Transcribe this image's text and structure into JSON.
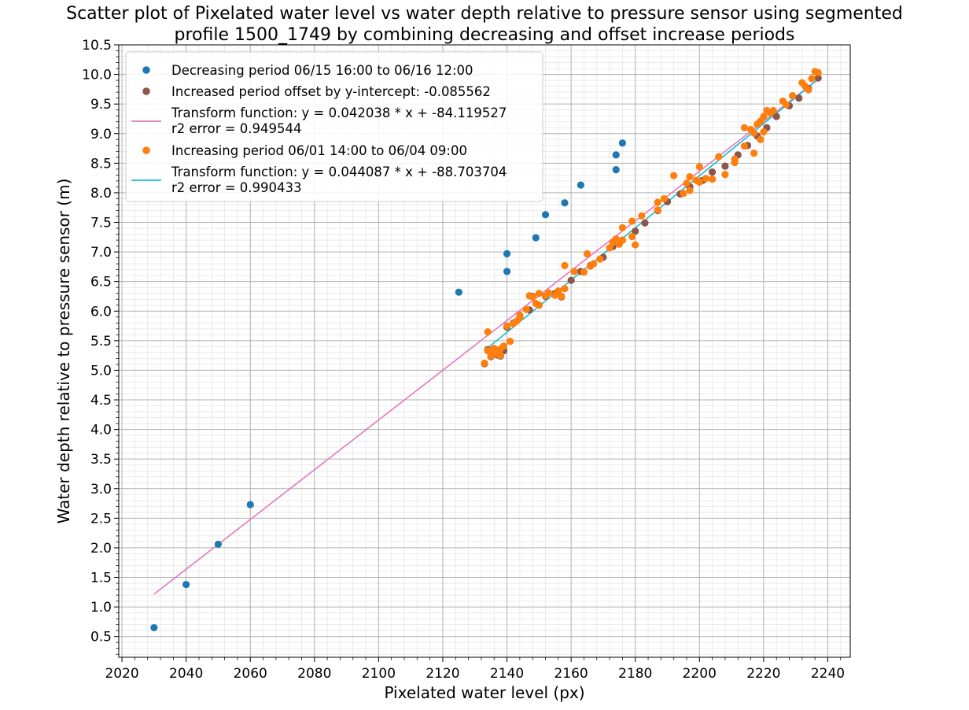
{
  "chart_data": {
    "type": "scatter",
    "title_lines": [
      "Scatter plot of Pixelated water level vs water depth relative to pressure sensor using segmented",
      "profile 1500_1749 by combining decreasing and offset increase periods"
    ],
    "xlabel": "Pixelated water level (px)",
    "ylabel": "Water depth relative to pressure sensor (m)",
    "xlim": [
      2019,
      2247
    ],
    "ylim": [
      0.15,
      10.5
    ],
    "x_ticks": [
      2020,
      2040,
      2060,
      2080,
      2100,
      2120,
      2140,
      2160,
      2180,
      2200,
      2220,
      2240
    ],
    "y_ticks": [
      0.5,
      1.0,
      1.5,
      2.0,
      2.5,
      3.0,
      3.5,
      4.0,
      4.5,
      5.0,
      5.5,
      6.0,
      6.5,
      7.0,
      7.5,
      8.0,
      8.5,
      9.0,
      9.5,
      10.0,
      10.5
    ],
    "grid": "major and minor",
    "legend_placement": "upper-left",
    "legend": [
      {
        "kind": "marker",
        "color": "#1f77b4",
        "lines": [
          "Decreasing period 06/15 16:00 to 06/16 12:00"
        ]
      },
      {
        "kind": "marker",
        "color": "#8c564b",
        "lines": [
          "Increased period offset by y-intercept: -0.085562"
        ]
      },
      {
        "kind": "line",
        "color": "#e377c2",
        "lines": [
          "Transform function: y = 0.042038 * x + -84.119527",
          "r2 error = 0.949544"
        ]
      },
      {
        "kind": "marker",
        "color": "#ff7f0e",
        "lines": [
          "Increasing period 06/01 14:00 to 06/04 09:00"
        ]
      },
      {
        "kind": "line",
        "color": "#17becf",
        "lines": [
          "Transform function: y = 0.044087 * x + -88.703704",
          "r2 error = 0.990433"
        ]
      }
    ],
    "series": [
      {
        "name": "Decreasing period 06/15 16:00 to 06/16 12:00",
        "kind": "scatter",
        "color": "#1f77b4",
        "points": [
          [
            2030,
            0.65
          ],
          [
            2040,
            1.38
          ],
          [
            2050,
            2.06
          ],
          [
            2060,
            2.73
          ],
          [
            2125,
            6.32
          ],
          [
            2140,
            6.67
          ],
          [
            2140,
            6.97
          ],
          [
            2149,
            7.24
          ],
          [
            2152,
            7.63
          ],
          [
            2158,
            7.83
          ],
          [
            2163,
            8.13
          ],
          [
            2174,
            8.39
          ],
          [
            2174,
            8.64
          ],
          [
            2176,
            8.84
          ]
        ]
      },
      {
        "name": "Increased period offset by y-intercept: -0.085562",
        "kind": "scatter",
        "color": "#8c564b",
        "points": [
          [
            2133,
            5.11
          ],
          [
            2134,
            5.35
          ],
          [
            2135,
            5.23
          ],
          [
            2136,
            5.3
          ],
          [
            2137,
            5.26
          ],
          [
            2138,
            5.24
          ],
          [
            2139,
            5.33
          ],
          [
            2140,
            5.73
          ],
          [
            2142,
            5.8
          ],
          [
            2144,
            5.9
          ],
          [
            2147,
            6.02
          ],
          [
            2148,
            6.25
          ],
          [
            2150,
            6.1
          ],
          [
            2152,
            6.25
          ],
          [
            2155,
            6.3
          ],
          [
            2157,
            6.24
          ],
          [
            2160,
            6.52
          ],
          [
            2163,
            6.67
          ],
          [
            2166,
            6.77
          ],
          [
            2170,
            6.91
          ],
          [
            2173,
            7.09
          ],
          [
            2176,
            7.2
          ],
          [
            2180,
            7.35
          ],
          [
            2183,
            7.49
          ],
          [
            2187,
            7.7
          ],
          [
            2190,
            7.85
          ],
          [
            2194,
            7.98
          ],
          [
            2197,
            8.1
          ],
          [
            2201,
            8.21
          ],
          [
            2204,
            8.35
          ],
          [
            2208,
            8.45
          ],
          [
            2212,
            8.64
          ],
          [
            2215,
            8.8
          ],
          [
            2218,
            8.96
          ],
          [
            2221,
            9.1
          ],
          [
            2224,
            9.29
          ],
          [
            2228,
            9.47
          ],
          [
            2231,
            9.6
          ],
          [
            2234,
            9.76
          ],
          [
            2237,
            9.94
          ]
        ]
      },
      {
        "name": "Increasing period 06/01 14:00 to 06/04 09:00",
        "kind": "scatter",
        "color": "#ff7f0e",
        "points": [
          [
            2133,
            5.12
          ],
          [
            2134,
            5.33
          ],
          [
            2134,
            5.65
          ],
          [
            2135,
            5.24
          ],
          [
            2135,
            5.31
          ],
          [
            2136,
            5.37
          ],
          [
            2137,
            5.28
          ],
          [
            2138,
            5.25
          ],
          [
            2138,
            5.36
          ],
          [
            2139,
            5.41
          ],
          [
            2140,
            5.75
          ],
          [
            2141,
            5.49
          ],
          [
            2142,
            5.79
          ],
          [
            2143,
            5.83
          ],
          [
            2144,
            5.89
          ],
          [
            2144,
            5.93
          ],
          [
            2146,
            6.03
          ],
          [
            2147,
            6.26
          ],
          [
            2148,
            6.24
          ],
          [
            2149,
            6.13
          ],
          [
            2150,
            6.1
          ],
          [
            2150,
            6.3
          ],
          [
            2152,
            6.26
          ],
          [
            2153,
            6.31
          ],
          [
            2155,
            6.27
          ],
          [
            2156,
            6.34
          ],
          [
            2157,
            6.25
          ],
          [
            2158,
            6.38
          ],
          [
            2158,
            6.77
          ],
          [
            2161,
            6.67
          ],
          [
            2164,
            6.66
          ],
          [
            2165,
            6.97
          ],
          [
            2166,
            6.76
          ],
          [
            2167,
            6.8
          ],
          [
            2169,
            6.88
          ],
          [
            2172,
            7.07
          ],
          [
            2173,
            7.16
          ],
          [
            2174,
            7.22
          ],
          [
            2175,
            7.13
          ],
          [
            2176,
            7.2
          ],
          [
            2176,
            7.41
          ],
          [
            2179,
            7.52
          ],
          [
            2180,
            7.12
          ],
          [
            2179,
            7.26
          ],
          [
            2182,
            7.61
          ],
          [
            2187,
            7.84
          ],
          [
            2187,
            7.71
          ],
          [
            2189,
            7.9
          ],
          [
            2192,
            8.29
          ],
          [
            2195,
            7.99
          ],
          [
            2196,
            8.16
          ],
          [
            2197,
            8.27
          ],
          [
            2197,
            8.04
          ],
          [
            2199,
            8.21
          ],
          [
            2200,
            8.18
          ],
          [
            2200,
            8.44
          ],
          [
            2202,
            8.24
          ],
          [
            2204,
            8.23
          ],
          [
            2206,
            8.61
          ],
          [
            2208,
            8.31
          ],
          [
            2211,
            8.51
          ],
          [
            2211,
            8.57
          ],
          [
            2214,
            8.79
          ],
          [
            2214,
            9.1
          ],
          [
            2216,
            9.07
          ],
          [
            2217,
            8.67
          ],
          [
            2217,
            9.01
          ],
          [
            2218,
            9.16
          ],
          [
            2219,
            8.9
          ],
          [
            2219,
            9.21
          ],
          [
            2220,
            9.03
          ],
          [
            2220,
            9.29
          ],
          [
            2221,
            9.39
          ],
          [
            2222,
            9.35
          ],
          [
            2223,
            9.39
          ],
          [
            2226,
            9.55
          ],
          [
            2227,
            9.49
          ],
          [
            2229,
            9.64
          ],
          [
            2232,
            9.86
          ],
          [
            2233,
            9.8
          ],
          [
            2234,
            9.74
          ],
          [
            2235,
            9.93
          ],
          [
            2236,
            10.05
          ],
          [
            2237,
            10.03
          ]
        ]
      },
      {
        "name": "Transform function: y = 0.042038 * x + -84.119527",
        "kind": "line",
        "color": "#e377c2",
        "x_range": [
          2030,
          2236
        ],
        "slope": 0.042038,
        "intercept": -84.119527
      },
      {
        "name": "Transform function: y = 0.044087 * x + -88.703704",
        "kind": "line",
        "color": "#17becf",
        "x_range": [
          2133.5,
          2237
        ],
        "slope": 0.044087,
        "intercept": -88.703704
      }
    ]
  }
}
